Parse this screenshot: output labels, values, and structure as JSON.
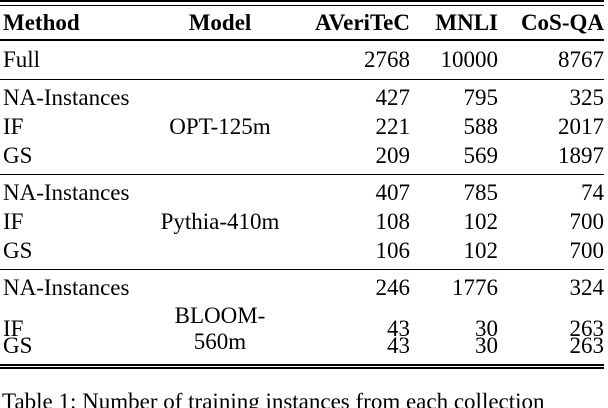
{
  "table": {
    "headers": {
      "method": "Method",
      "model": "Model",
      "col1": "AVeriTeC",
      "col2": "MNLI",
      "col3": "CoS-QA"
    },
    "full_row": {
      "method": "Full",
      "model": "",
      "values": [
        "2768",
        "10000",
        "8767"
      ]
    },
    "groups": [
      {
        "model": "OPT-125m",
        "rows": [
          {
            "method": "NA-Instances",
            "values": [
              "427",
              "795",
              "325"
            ]
          },
          {
            "method": "IF",
            "values": [
              "221",
              "588",
              "2017"
            ]
          },
          {
            "method": "GS",
            "values": [
              "209",
              "569",
              "1897"
            ]
          }
        ]
      },
      {
        "model": "Pythia-410m",
        "rows": [
          {
            "method": "NA-Instances",
            "values": [
              "407",
              "785",
              "74"
            ]
          },
          {
            "method": "IF",
            "values": [
              "108",
              "102",
              "700"
            ]
          },
          {
            "method": "GS",
            "values": [
              "106",
              "102",
              "700"
            ]
          }
        ]
      },
      {
        "model": "BLOOM-560m",
        "rows": [
          {
            "method": "NA-Instances",
            "values": [
              "246",
              "1776",
              "324"
            ]
          },
          {
            "method": "IF",
            "values": [
              "43",
              "30",
              "263"
            ]
          },
          {
            "method": "GS",
            "values": [
              "43",
              "30",
              "263"
            ]
          }
        ]
      }
    ]
  },
  "caption": "Table 1: Number of training instances from each collection",
  "colors": {
    "text": "#000000",
    "rule": "#000000",
    "background": "#ffffff"
  }
}
